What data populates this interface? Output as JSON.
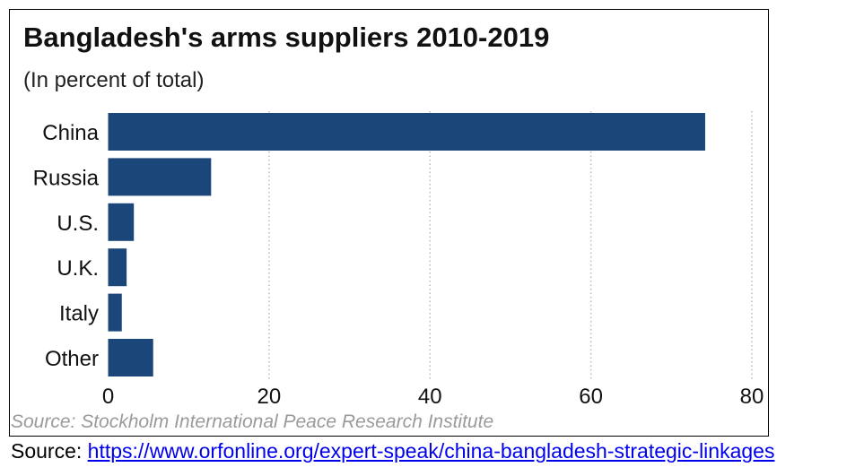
{
  "chart_data": {
    "type": "bar",
    "orientation": "horizontal",
    "title": "Bangladesh's arms suppliers 2010-2019",
    "subtitle": "(In percent of total)",
    "categories": [
      "China",
      "Russia",
      "U.S.",
      "U.K.",
      "Italy",
      "Other"
    ],
    "values": [
      74.2,
      12.8,
      3.2,
      2.3,
      1.7,
      5.6
    ],
    "xlim": [
      0,
      80
    ],
    "xticks": [
      "0",
      "20",
      "40",
      "60",
      "80"
    ],
    "grid": "vertical dotted",
    "bar_color": "#1b4679",
    "source_note": "Source: Stockholm International Peace Research Institute"
  },
  "footer": {
    "label": "Source: ",
    "link": "https://www.orfonline.org/expert-speak/china-bangladesh-strategic-linkages"
  }
}
